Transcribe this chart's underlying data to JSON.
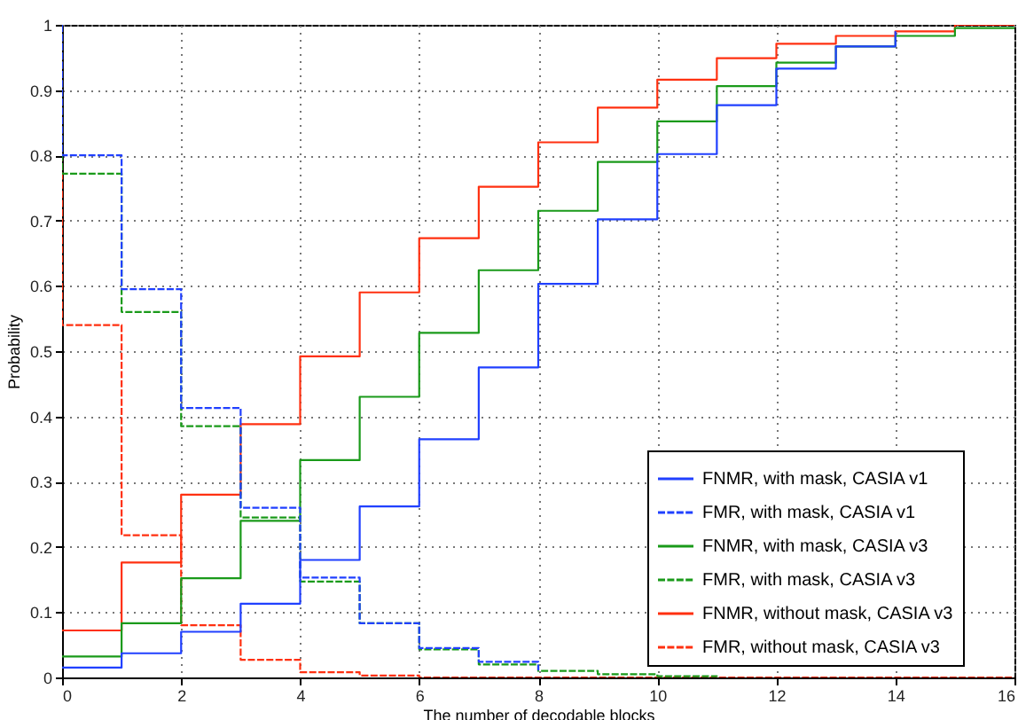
{
  "chart_data": {
    "type": "step",
    "xlabel": "The number of decodable blocks",
    "ylabel": "Probability",
    "xlim": [
      0,
      16
    ],
    "xticks": [
      0,
      2,
      4,
      6,
      8,
      10,
      12,
      14,
      16
    ],
    "ylim": [
      0,
      1
    ],
    "yticks": [
      {
        "value": 0,
        "label": "0"
      },
      0.1,
      0.2,
      0.3,
      0.4,
      0.5,
      0.6,
      0.7,
      0.8,
      0.9,
      {
        "value": 1,
        "label": "1"
      }
    ],
    "grid": true,
    "legend": "bottom right",
    "marker": "none",
    "x": [
      0,
      1,
      2,
      3,
      4,
      5,
      6,
      7,
      8,
      9,
      10,
      11,
      12,
      13,
      14,
      15,
      16
    ],
    "series": [
      {
        "name": "FNMR, with mask, CASIA v1",
        "color": "#2040ff",
        "line_style": "solid",
        "values": [
          0.015,
          0.037,
          0.07,
          0.113,
          0.18,
          0.262,
          0.365,
          0.475,
          0.603,
          0.702,
          0.802,
          0.877,
          0.933,
          0.967,
          0.99
        ],
        "x": [
          0,
          1,
          2,
          3,
          4,
          5,
          6,
          7,
          8,
          9,
          10,
          11,
          12,
          13,
          14
        ]
      },
      {
        "name": "FMR, with mask, CASIA v1",
        "color": "#2040ff",
        "line_style": "dashed",
        "x": [
          0,
          0,
          1,
          2,
          3,
          4,
          5,
          6,
          7,
          8
        ],
        "values": [
          1,
          0.8,
          0.595,
          0.413,
          0.26,
          0.153,
          0.083,
          0.045,
          0.024,
          0.011
        ]
      },
      {
        "name": "FNMR, with mask, CASIA v3",
        "color": "#1a9a1a",
        "line_style": "solid",
        "values": [
          0.032,
          0.083,
          0.152,
          0.24,
          0.333,
          0.43,
          0.528,
          0.624,
          0.715,
          0.79,
          0.852,
          0.906,
          0.942,
          0.967,
          0.983,
          0.995,
          0.995
        ]
      },
      {
        "name": "FMR, with mask, CASIA v3",
        "color": "#1a9a1a",
        "line_style": "dashed",
        "x": [
          0,
          0,
          1,
          2,
          3,
          4,
          5,
          6,
          7,
          8,
          9,
          10,
          11
        ],
        "values": [
          1,
          0.772,
          0.56,
          0.385,
          0.245,
          0.147,
          0.083,
          0.043,
          0.02,
          0.01,
          0.005,
          0.002,
          0.001
        ]
      },
      {
        "name": "FNMR, without mask, CASIA v3",
        "color": "#ff3010",
        "line_style": "solid",
        "values": [
          0.072,
          0.176,
          0.28,
          0.388,
          0.492,
          0.59,
          0.673,
          0.752,
          0.82,
          0.873,
          0.916,
          0.949,
          0.971,
          0.983,
          0.99,
          1,
          1
        ]
      },
      {
        "name": "FMR, without mask, CASIA v3",
        "color": "#ff3010",
        "line_style": "dashed",
        "x": [
          0,
          0,
          1,
          2,
          3,
          4,
          5,
          6,
          7,
          8,
          9,
          10,
          11,
          12,
          13,
          14,
          15,
          16
        ],
        "values": [
          1,
          0.54,
          0.218,
          0.08,
          0.027,
          0.008,
          0.003,
          0,
          0,
          0,
          0,
          0,
          0,
          0,
          0,
          0,
          0,
          0
        ]
      }
    ]
  }
}
